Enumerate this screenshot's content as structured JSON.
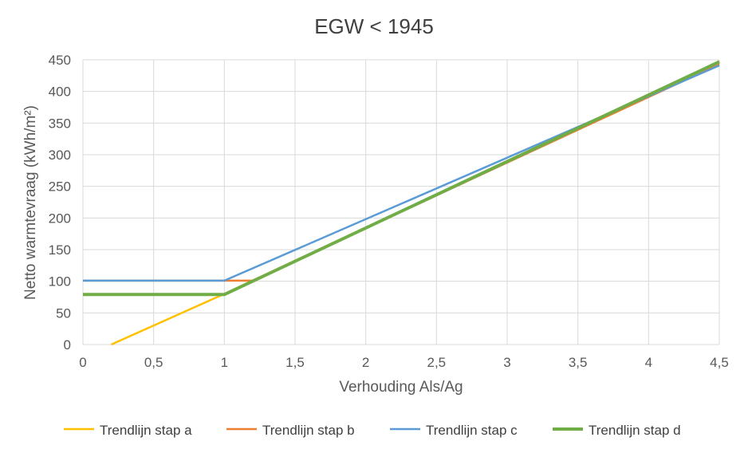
{
  "chart_data": {
    "type": "line",
    "title": "EGW < 1945",
    "xlabel": "Verhouding Als/Ag",
    "ylabel": "Netto warmtevraag (kWh/m²)",
    "xlim": [
      0,
      4.5
    ],
    "ylim": [
      0,
      450
    ],
    "x_ticks": [
      "0",
      "0,5",
      "1",
      "1,5",
      "2",
      "2,5",
      "3",
      "3,5",
      "4",
      "4,5"
    ],
    "y_ticks": [
      "0",
      "50",
      "100",
      "150",
      "200",
      "250",
      "300",
      "350",
      "400",
      "450"
    ],
    "grid": true,
    "legend_position": "bottom",
    "series": [
      {
        "name": "Trendlijn stap a",
        "color": "#ffc000",
        "points": [
          [
            0.2,
            0
          ],
          [
            1.0,
            80
          ],
          [
            4.5,
            447
          ]
        ]
      },
      {
        "name": "Trendlijn stap b",
        "color": "#ed7d31",
        "points": [
          [
            0,
            101
          ],
          [
            1.2,
            101
          ],
          [
            4.5,
            443
          ]
        ]
      },
      {
        "name": "Trendlijn stap c",
        "color": "#5b9bd5",
        "points": [
          [
            0,
            101
          ],
          [
            1.0,
            101
          ],
          [
            4.5,
            441
          ]
        ]
      },
      {
        "name": "Trendlijn stap d",
        "color": "#70ad47",
        "points": [
          [
            0,
            79
          ],
          [
            1.0,
            79
          ],
          [
            4.5,
            447
          ]
        ]
      }
    ]
  }
}
